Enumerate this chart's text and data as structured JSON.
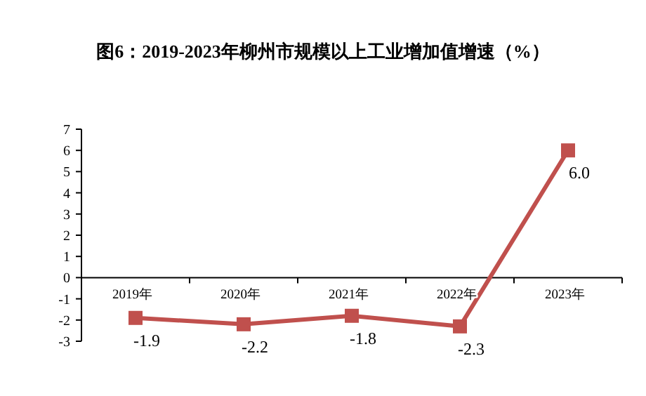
{
  "chart_data": {
    "type": "line",
    "title": "图6：2019-2023年柳州市规模以上工业增加值增速（%）",
    "categories": [
      "2019年",
      "2020年",
      "2021年",
      "2022年",
      "2023年"
    ],
    "series": [
      {
        "color": "#c0504d",
        "values": [
          -1.9,
          -2.2,
          -1.8,
          -2.3,
          6.0
        ],
        "value_labels": [
          "-1.9",
          "-2.2",
          "-1.8",
          "-2.3",
          "6.0"
        ]
      }
    ],
    "ylim": [
      -3,
      7
    ],
    "yticks": [
      -3,
      -2,
      -1,
      0,
      1,
      2,
      3,
      4,
      5,
      6,
      7
    ],
    "marker": "square",
    "line_style": "solid",
    "grid": false
  }
}
